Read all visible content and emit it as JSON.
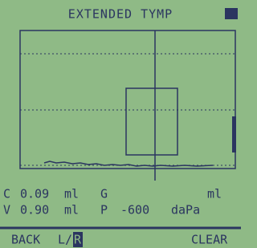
{
  "screen": {
    "title": "EXTENDED TYMP",
    "readings": [
      [
        "C",
        "0.09",
        "ml",
        "G",
        "ml"
      ],
      [
        "V",
        "0.90",
        "ml",
        "P",
        "-600",
        "daPa"
      ]
    ],
    "footer": {
      "back": "BACK",
      "side": "L/",
      "selected": "R",
      "clear": "CLEAR"
    }
  }
}
